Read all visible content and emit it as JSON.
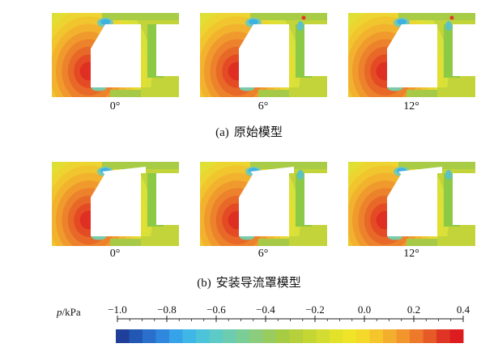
{
  "rows": [
    {
      "caption_label": "(a)",
      "caption_text": "原始模型",
      "shroud": false,
      "panels": [
        {
          "angle": "0°"
        },
        {
          "angle": "6°"
        },
        {
          "angle": "12°"
        }
      ]
    },
    {
      "caption_label": "(b)",
      "caption_text": "安装导流罩模型",
      "shroud": true,
      "panels": [
        {
          "angle": "0°"
        },
        {
          "angle": "6°"
        },
        {
          "angle": "12°"
        }
      ]
    }
  ],
  "colorbar": {
    "variable": "p",
    "unit": "/kPa",
    "min": -1.0,
    "max": 0.4,
    "ticks": [
      {
        "value": -1.0,
        "label": "−1.0"
      },
      {
        "value": -0.8,
        "label": "−0.8"
      },
      {
        "value": -0.6,
        "label": "−0.6"
      },
      {
        "value": -0.4,
        "label": "−0.4"
      },
      {
        "value": -0.2,
        "label": "−0.2"
      },
      {
        "value": 0.0,
        "label": "0.0"
      },
      {
        "value": 0.2,
        "label": "0.2"
      },
      {
        "value": 0.4,
        "label": "0.4"
      }
    ],
    "colors": [
      "#1f3f9a",
      "#2257b4",
      "#2a6fcc",
      "#2f88de",
      "#36a3e8",
      "#3fb7e6",
      "#4dc3d9",
      "#5ccac6",
      "#6bccb0",
      "#7bcd96",
      "#8bcd7c",
      "#98cc5f",
      "#a6cc44",
      "#b5d03a",
      "#c4d634",
      "#d3dc30",
      "#e3e22b",
      "#f0e428",
      "#f4d82a",
      "#f5c52c",
      "#f4ae2d",
      "#f1952c",
      "#ec7a2a",
      "#e65a28",
      "#e03524",
      "#dc1c1f"
    ]
  }
}
